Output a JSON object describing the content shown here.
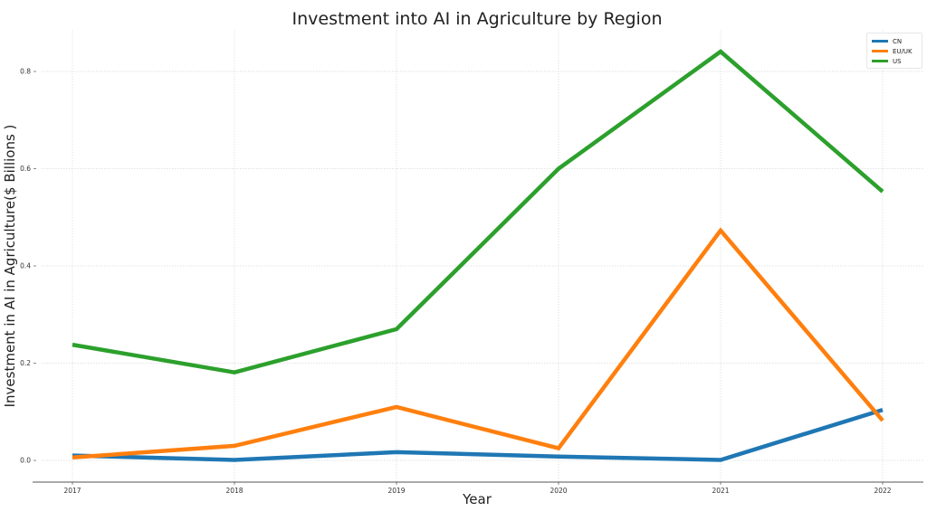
{
  "chart_data": {
    "type": "line",
    "title": "Investment into AI in Agriculture by Region",
    "xlabel": "Year",
    "ylabel": "Investment in AI in Agriculture($ Billions )",
    "x": [
      2017,
      2018,
      2019,
      2020,
      2021,
      2022
    ],
    "x_tick_labels": [
      "2017",
      "2018",
      "2019",
      "2020",
      "2021",
      "2022"
    ],
    "y_ticks": [
      0.0,
      0.2,
      0.4,
      0.6,
      0.8
    ],
    "y_tick_labels": [
      "0.0",
      "0.2",
      "0.4",
      "0.6",
      "0.8"
    ],
    "ylim": [
      -0.04,
      0.88
    ],
    "grid": true,
    "legend_position": "upper right",
    "series": [
      {
        "name": "CN",
        "color": "#1f77b4",
        "values": [
          0.01,
          0.001,
          0.017,
          0.008,
          0.001,
          0.104
        ]
      },
      {
        "name": "EU/UK",
        "color": "#ff7f0e",
        "values": [
          0.006,
          0.03,
          0.11,
          0.025,
          0.473,
          0.082
        ]
      },
      {
        "name": "US",
        "color": "#2ca02c",
        "values": [
          0.238,
          0.181,
          0.27,
          0.6,
          0.841,
          0.553
        ]
      }
    ]
  },
  "legend": {
    "items": [
      {
        "label": "CN",
        "color": "#1f77b4"
      },
      {
        "label": "EU/UK",
        "color": "#ff7f0e"
      },
      {
        "label": "US",
        "color": "#2ca02c"
      }
    ]
  }
}
